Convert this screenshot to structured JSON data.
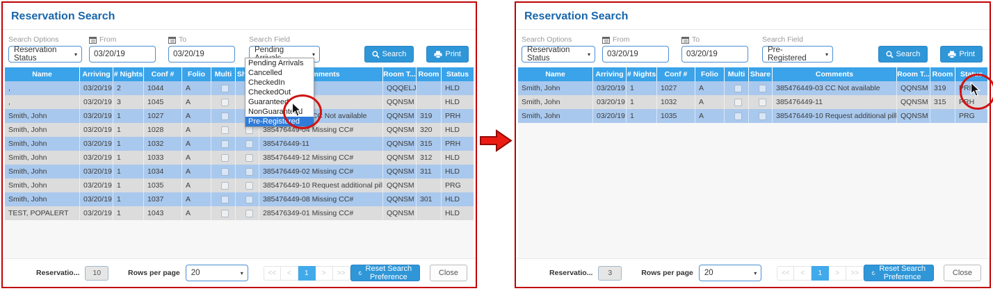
{
  "table_columns": [
    {
      "key": "name",
      "label": "Name"
    },
    {
      "key": "arriving",
      "label": "Arriving"
    },
    {
      "key": "nights",
      "label": "# Nights"
    },
    {
      "key": "conf",
      "label": "Conf #"
    },
    {
      "key": "folio",
      "label": "Folio"
    },
    {
      "key": "multi",
      "label": "Multi"
    },
    {
      "key": "share",
      "label": "Share"
    },
    {
      "key": "comments",
      "label": "Comments"
    },
    {
      "key": "roomtype",
      "label": "Room T..."
    },
    {
      "key": "room",
      "label": "Room"
    },
    {
      "key": "status",
      "label": "Status"
    }
  ],
  "panels": [
    {
      "title": "Reservation Search",
      "search": {
        "options_label": "Search Options",
        "options_value": "Reservation Status",
        "from_label": "From",
        "from_value": "03/20/19",
        "to_label": "To",
        "to_value": "03/20/19",
        "field_label": "Search Field",
        "field_value": "Pending Arrivals",
        "search_button": "Search",
        "print_button": "Print"
      },
      "dropdown": {
        "options": [
          "Pending Arrivals",
          "Cancelled",
          "CheckedIn",
          "CheckedOut",
          "Guaranteed",
          "NonGuaranteed",
          "Pre-Registered"
        ],
        "selected": "Pre-Registered"
      },
      "rows": [
        {
          "name": ",",
          "arriving": "03/20/19",
          "nights": "2",
          "conf": "1044",
          "folio": "A",
          "comments": "",
          "roomtype": "QQQELJ",
          "room": "",
          "status": "HLD"
        },
        {
          "name": ",",
          "arriving": "03/20/19",
          "nights": "3",
          "conf": "1045",
          "folio": "A",
          "comments": "",
          "roomtype": "QQNSM",
          "room": "",
          "status": "HLD"
        },
        {
          "name": "Smith, John",
          "arriving": "03/20/19",
          "nights": "1",
          "conf": "1027",
          "folio": "A",
          "comments": "385476449-03 CC Not available",
          "roomtype": "QQNSM",
          "room": "319",
          "status": "PRH"
        },
        {
          "name": "Smith, John",
          "arriving": "03/20/19",
          "nights": "1",
          "conf": "1028",
          "folio": "A",
          "comments": "385476449-04 Missing CC#",
          "roomtype": "QQNSM",
          "room": "320",
          "status": "HLD"
        },
        {
          "name": "Smith, John",
          "arriving": "03/20/19",
          "nights": "1",
          "conf": "1032",
          "folio": "A",
          "comments": "385476449-11",
          "roomtype": "QQNSM",
          "room": "315",
          "status": "PRH"
        },
        {
          "name": "Smith, John",
          "arriving": "03/20/19",
          "nights": "1",
          "conf": "1033",
          "folio": "A",
          "comments": "385476449-12 Missing CC#",
          "roomtype": "QQNSM",
          "room": "312",
          "status": "HLD"
        },
        {
          "name": "Smith, John",
          "arriving": "03/20/19",
          "nights": "1",
          "conf": "1034",
          "folio": "A",
          "comments": "385476449-02 Missing CC#",
          "roomtype": "QQNSM",
          "room": "311",
          "status": "HLD"
        },
        {
          "name": "Smith, John",
          "arriving": "03/20/19",
          "nights": "1",
          "conf": "1035",
          "folio": "A",
          "comments": "385476449-10 Request additional pillows",
          "roomtype": "QQNSM",
          "room": "",
          "status": "PRG"
        },
        {
          "name": "Smith, John",
          "arriving": "03/20/19",
          "nights": "1",
          "conf": "1037",
          "folio": "A",
          "comments": "385476449-08 Missing CC#",
          "roomtype": "QQNSM",
          "room": "301",
          "status": "HLD"
        },
        {
          "name": "TEST, POPALERT",
          "arriving": "03/20/19",
          "nights": "1",
          "conf": "1043",
          "folio": "A",
          "comments": "285476349-01 Missing CC#",
          "roomtype": "QQNSM",
          "room": "",
          "status": "HLD"
        }
      ],
      "footer": {
        "reservations_label": "Reservatio...",
        "count": "10",
        "rows_per_page_label": "Rows per page",
        "rows_per_page_value": "20",
        "pagination": [
          "<<",
          "<",
          "1",
          ">",
          ">>"
        ],
        "page_active": "1",
        "reset_label": "Reset Search Preference",
        "close_label": "Close"
      }
    },
    {
      "title": "Reservation Search",
      "search": {
        "options_label": "Search Options",
        "options_value": "Reservation Status",
        "from_label": "From",
        "from_value": "03/20/19",
        "to_label": "To",
        "to_value": "03/20/19",
        "field_label": "Search Field",
        "field_value": "Pre-Registered",
        "search_button": "Search",
        "print_button": "Print"
      },
      "rows": [
        {
          "name": "Smith, John",
          "arriving": "03/20/19",
          "nights": "1",
          "conf": "1027",
          "folio": "A",
          "comments": "385476449-03 CC Not available",
          "roomtype": "QQNSM",
          "room": "319",
          "status": "PRH"
        },
        {
          "name": "Smith, John",
          "arriving": "03/20/19",
          "nights": "1",
          "conf": "1032",
          "folio": "A",
          "comments": "385476449-11",
          "roomtype": "QQNSM",
          "room": "315",
          "status": "PRH"
        },
        {
          "name": "Smith, John",
          "arriving": "03/20/19",
          "nights": "1",
          "conf": "1035",
          "folio": "A",
          "comments": "385476449-10 Request additional pillows",
          "roomtype": "QQNSM",
          "room": "",
          "status": "PRG"
        }
      ],
      "footer": {
        "reservations_label": "Reservatio...",
        "count": "3",
        "rows_per_page_label": "Rows per page",
        "rows_per_page_value": "20",
        "pagination": [
          "<<",
          "<",
          "1",
          ">",
          ">>"
        ],
        "page_active": "1",
        "reset_label": "Reset Search Preference",
        "close_label": "Close"
      }
    }
  ],
  "colors": {
    "title_blue": "#1966ab",
    "table_header_blue": "#3aa3e9",
    "row_blue": "#a9c8ed",
    "row_gray": "#dcdcdc",
    "button_blue": "#2f96d8",
    "selected_option_blue": "#2f7bd9",
    "annotation_red": "#d01212",
    "panel_border_red": "#c00000"
  }
}
